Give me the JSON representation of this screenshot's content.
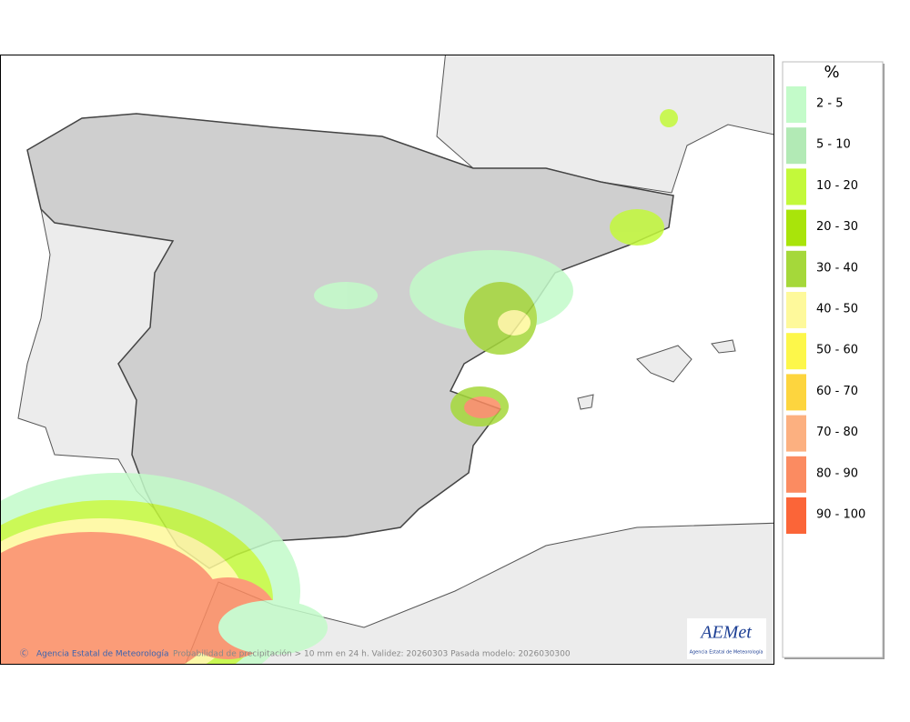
{
  "legend": {
    "title": "%",
    "items": [
      {
        "label": "2 - 5",
        "color": "#c3fbc9"
      },
      {
        "label": "5 - 10",
        "color": "#b2eab5"
      },
      {
        "label": "10 - 20",
        "color": "#c3f93a"
      },
      {
        "label": "20 - 30",
        "color": "#a9e40a"
      },
      {
        "label": "30 - 40",
        "color": "#a5d83a"
      },
      {
        "label": "40 - 50",
        "color": "#fef99b"
      },
      {
        "label": "50 - 60",
        "color": "#fdf74a"
      },
      {
        "label": "60 - 70",
        "color": "#fdd53e"
      },
      {
        "label": "70 - 80",
        "color": "#fcb080"
      },
      {
        "label": "80 - 90",
        "color": "#fb8b61"
      },
      {
        "label": "90 - 100",
        "color": "#fb6538"
      }
    ]
  },
  "footer": {
    "credit": "Agencia Estatal de Meteorología",
    "caption": "Probabilidad de precipitación > 10 mm en 24 h. Validez: 20260303 Pasada modelo: 2026030300"
  },
  "logo": {
    "name": "AEMet",
    "subtitle": "Agencia Estatal de Meteorología"
  }
}
